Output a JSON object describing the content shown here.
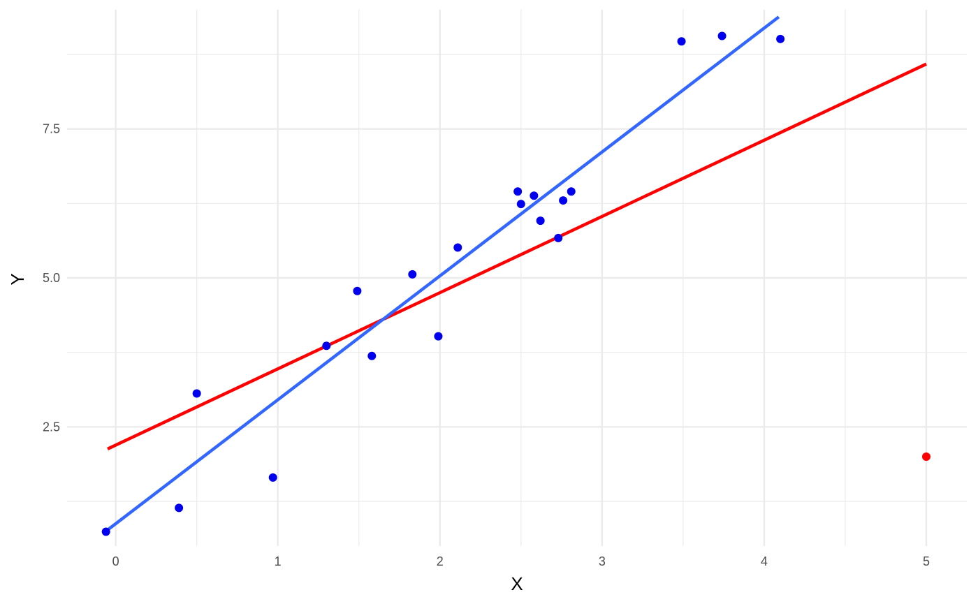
{
  "chart_data": {
    "type": "scatter",
    "title": "",
    "xlabel": "X",
    "ylabel": "Y",
    "xlim": [
      -0.3,
      5.25
    ],
    "ylim": [
      0.5,
      9.5
    ],
    "x_ticks": [
      0,
      1,
      2,
      3,
      4,
      5
    ],
    "x_tick_labels": [
      "0",
      "1",
      "2",
      "3",
      "4",
      "5"
    ],
    "y_ticks": [
      2.5,
      5.0,
      7.5
    ],
    "y_tick_labels": [
      "2.5",
      "5.0",
      "7.5"
    ],
    "grid": true,
    "legend": "none",
    "colors": {
      "points": "#0000ee",
      "outlier": "#ff0000",
      "fit_with_outlier": "#ff0000",
      "fit_without_outlier": "#3366ff",
      "grid": "#ebebeb",
      "tick_text": "#4d4d4d"
    },
    "points": [
      {
        "x": -0.06,
        "y": 0.74
      },
      {
        "x": 0.39,
        "y": 1.14
      },
      {
        "x": 0.5,
        "y": 3.06
      },
      {
        "x": 0.97,
        "y": 1.65
      },
      {
        "x": 1.3,
        "y": 3.86
      },
      {
        "x": 1.49,
        "y": 4.78
      },
      {
        "x": 1.58,
        "y": 3.69
      },
      {
        "x": 1.83,
        "y": 5.06
      },
      {
        "x": 1.99,
        "y": 4.02
      },
      {
        "x": 2.11,
        "y": 5.51
      },
      {
        "x": 2.48,
        "y": 6.45
      },
      {
        "x": 2.5,
        "y": 6.24
      },
      {
        "x": 2.58,
        "y": 6.38
      },
      {
        "x": 2.62,
        "y": 5.96
      },
      {
        "x": 2.73,
        "y": 5.67
      },
      {
        "x": 2.76,
        "y": 6.3
      },
      {
        "x": 2.81,
        "y": 6.45
      },
      {
        "x": 3.49,
        "y": 8.97
      },
      {
        "x": 3.74,
        "y": 9.06
      },
      {
        "x": 4.1,
        "y": 9.01
      }
    ],
    "outlier": {
      "x": 5.0,
      "y": 2.0
    },
    "lines": [
      {
        "id": "fit-with-outlier",
        "color": "#ff0000",
        "x": [
          -0.05,
          5.0
        ],
        "y": [
          2.13,
          8.59
        ]
      },
      {
        "id": "fit-without-outlier",
        "color": "#3366ff",
        "x": [
          -0.06,
          4.09
        ],
        "y": [
          0.75,
          9.38
        ]
      }
    ]
  }
}
